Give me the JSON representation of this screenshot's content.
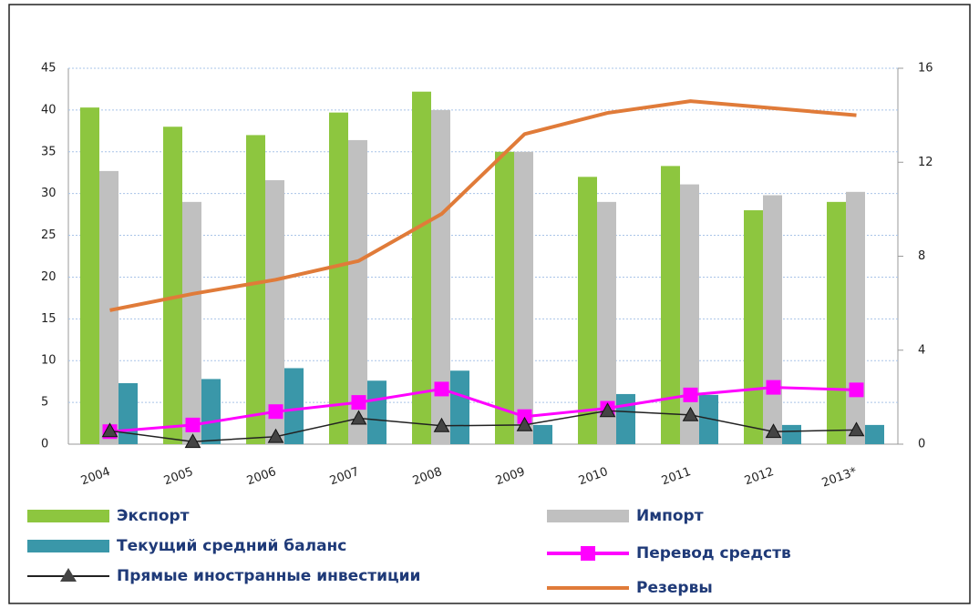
{
  "chart_data": {
    "type": "bar_line",
    "categories": [
      "2004",
      "2005",
      "2006",
      "2007",
      "2008",
      "2009",
      "2010",
      "2011",
      "2012",
      "2013*"
    ],
    "series": [
      {
        "name": "Экспорт",
        "type": "bar",
        "color": "#8dc63f",
        "values": [
          40.3,
          38,
          37,
          39.7,
          42.2,
          35,
          32,
          33.3,
          28,
          29
        ]
      },
      {
        "name": "Импорт",
        "type": "bar",
        "color": "#c0c0c0",
        "values": [
          32.7,
          29,
          31.6,
          36.4,
          40,
          35,
          29,
          31.1,
          29.8,
          30.2
        ]
      },
      {
        "name": "Текущий средний баланс",
        "type": "bar",
        "color": "#3a97a9",
        "values": [
          7.3,
          7.8,
          9.1,
          7.6,
          8.8,
          2.3,
          6,
          5.9,
          2.3,
          2.3
        ]
      },
      {
        "name": "Перевод средств",
        "type": "line",
        "marker": "square",
        "color": "#ff00ff",
        "values": [
          1.5,
          2.3,
          3.9,
          5,
          6.6,
          3.3,
          4.3,
          5.9,
          6.8,
          6.5
        ]
      },
      {
        "name": "Прямые иностранные инвестиции",
        "type": "line",
        "marker": "triangle",
        "color": "#222222",
        "values": [
          1.6,
          0.3,
          0.9,
          3.1,
          2.2,
          2.3,
          4,
          3.5,
          1.5,
          1.7
        ]
      },
      {
        "name": "Резервы",
        "type": "line",
        "marker": "none",
        "color": "#e07b39",
        "axis": "y2",
        "values": [
          5.7,
          6.4,
          7,
          7.8,
          9.8,
          13.2,
          14.1,
          14.6,
          14.3,
          14
        ]
      }
    ],
    "ylim": [
      0,
      45
    ],
    "yticks": [
      0,
      5,
      10,
      15,
      20,
      25,
      30,
      35,
      40,
      45
    ],
    "y2lim": [
      0,
      16
    ],
    "y2ticks": [
      0,
      4,
      8,
      12,
      16
    ],
    "grid": true
  }
}
